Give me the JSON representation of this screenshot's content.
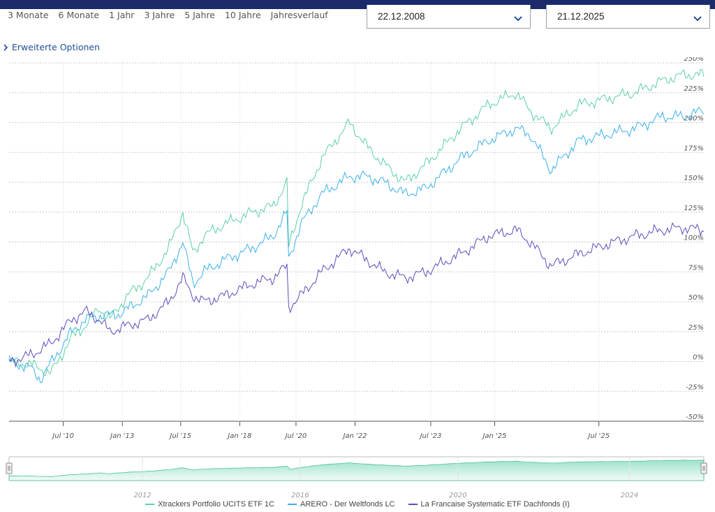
{
  "ranges": [
    "3 Monate",
    "6 Monate",
    "1 Jahr",
    "3 Jahre",
    "5 Jahre",
    "10 Jahre",
    "Jahresverlauf"
  ],
  "date_from": "22.12.2008",
  "date_to": "21.12.2025",
  "options_label": "Erweiterte Optionen",
  "navigator": {
    "labels": [
      "2012",
      "2016",
      "2020",
      "2024"
    ]
  },
  "colors": {
    "header": "#1b2a6b",
    "xtrackers": "#5ccfa9",
    "arero": "#3ab0ea",
    "lafrancaise": "#5b4dbd",
    "link": "#1f4e9a"
  },
  "chart_data": {
    "type": "line",
    "ylim": [
      -50,
      250
    ],
    "y_ticks": [
      "250%",
      "225%",
      "200%",
      "175%",
      "150%",
      "125%",
      "100%",
      "75%",
      "50%",
      "25%",
      "0%",
      "-25%",
      "-50%"
    ],
    "x_ticks": [
      "Jul '10",
      "Jan '13",
      "Jul '15",
      "Jan '18",
      "Jul '20",
      "Jan '22",
      "Jul '23",
      "Jan '25",
      "Jul '25"
    ],
    "grid": true,
    "legend_position": "bottom",
    "series": [
      {
        "name": "Xtrackers Portfolio UCITS ETF 1C",
        "values": [
          [
            0,
            0
          ],
          [
            0.03,
            -2
          ],
          [
            0.06,
            -10
          ],
          [
            0.09,
            20
          ],
          [
            0.11,
            30
          ],
          [
            0.13,
            45
          ],
          [
            0.145,
            35
          ],
          [
            0.17,
            55
          ],
          [
            0.2,
            70
          ],
          [
            0.23,
            95
          ],
          [
            0.25,
            125
          ],
          [
            0.265,
            90
          ],
          [
            0.28,
            105
          ],
          [
            0.31,
            115
          ],
          [
            0.35,
            125
          ],
          [
            0.38,
            130
          ],
          [
            0.4,
            150
          ],
          [
            0.402,
            95
          ],
          [
            0.42,
            130
          ],
          [
            0.45,
            170
          ],
          [
            0.49,
            200
          ],
          [
            0.515,
            180
          ],
          [
            0.54,
            165
          ],
          [
            0.57,
            150
          ],
          [
            0.6,
            165
          ],
          [
            0.65,
            195
          ],
          [
            0.69,
            215
          ],
          [
            0.73,
            225
          ],
          [
            0.75,
            210
          ],
          [
            0.78,
            195
          ],
          [
            0.82,
            215
          ],
          [
            0.86,
            220
          ],
          [
            0.9,
            225
          ],
          [
            0.94,
            235
          ],
          [
            0.97,
            240
          ],
          [
            1,
            240
          ]
        ]
      },
      {
        "name": "ARERO - Der Weltfonds LC",
        "values": [
          [
            0,
            0
          ],
          [
            0.03,
            -5
          ],
          [
            0.045,
            -15
          ],
          [
            0.09,
            25
          ],
          [
            0.11,
            35
          ],
          [
            0.13,
            38
          ],
          [
            0.16,
            40
          ],
          [
            0.2,
            55
          ],
          [
            0.23,
            75
          ],
          [
            0.25,
            100
          ],
          [
            0.265,
            65
          ],
          [
            0.28,
            75
          ],
          [
            0.31,
            85
          ],
          [
            0.35,
            95
          ],
          [
            0.38,
            105
          ],
          [
            0.4,
            125
          ],
          [
            0.402,
            85
          ],
          [
            0.42,
            115
          ],
          [
            0.45,
            140
          ],
          [
            0.49,
            155
          ],
          [
            0.515,
            155
          ],
          [
            0.54,
            150
          ],
          [
            0.57,
            140
          ],
          [
            0.6,
            145
          ],
          [
            0.65,
            170
          ],
          [
            0.69,
            185
          ],
          [
            0.73,
            195
          ],
          [
            0.75,
            190
          ],
          [
            0.78,
            160
          ],
          [
            0.82,
            185
          ],
          [
            0.86,
            190
          ],
          [
            0.9,
            195
          ],
          [
            0.94,
            205
          ],
          [
            0.97,
            205
          ],
          [
            1,
            210
          ]
        ]
      },
      {
        "name": "La Francaise Systematic ETF Dachfonds (I)",
        "values": [
          [
            0,
            0
          ],
          [
            0.03,
            5
          ],
          [
            0.06,
            15
          ],
          [
            0.09,
            35
          ],
          [
            0.11,
            42
          ],
          [
            0.13,
            35
          ],
          [
            0.145,
            25
          ],
          [
            0.17,
            30
          ],
          [
            0.2,
            35
          ],
          [
            0.23,
            50
          ],
          [
            0.25,
            70
          ],
          [
            0.265,
            55
          ],
          [
            0.28,
            50
          ],
          [
            0.31,
            55
          ],
          [
            0.35,
            65
          ],
          [
            0.38,
            70
          ],
          [
            0.4,
            80
          ],
          [
            0.402,
            45
          ],
          [
            0.42,
            55
          ],
          [
            0.45,
            75
          ],
          [
            0.49,
            95
          ],
          [
            0.515,
            85
          ],
          [
            0.54,
            75
          ],
          [
            0.57,
            70
          ],
          [
            0.6,
            75
          ],
          [
            0.65,
            90
          ],
          [
            0.69,
            105
          ],
          [
            0.73,
            110
          ],
          [
            0.75,
            100
          ],
          [
            0.78,
            80
          ],
          [
            0.82,
            90
          ],
          [
            0.86,
            98
          ],
          [
            0.9,
            105
          ],
          [
            0.94,
            110
          ],
          [
            0.97,
            112
          ],
          [
            1,
            110
          ]
        ]
      }
    ]
  }
}
